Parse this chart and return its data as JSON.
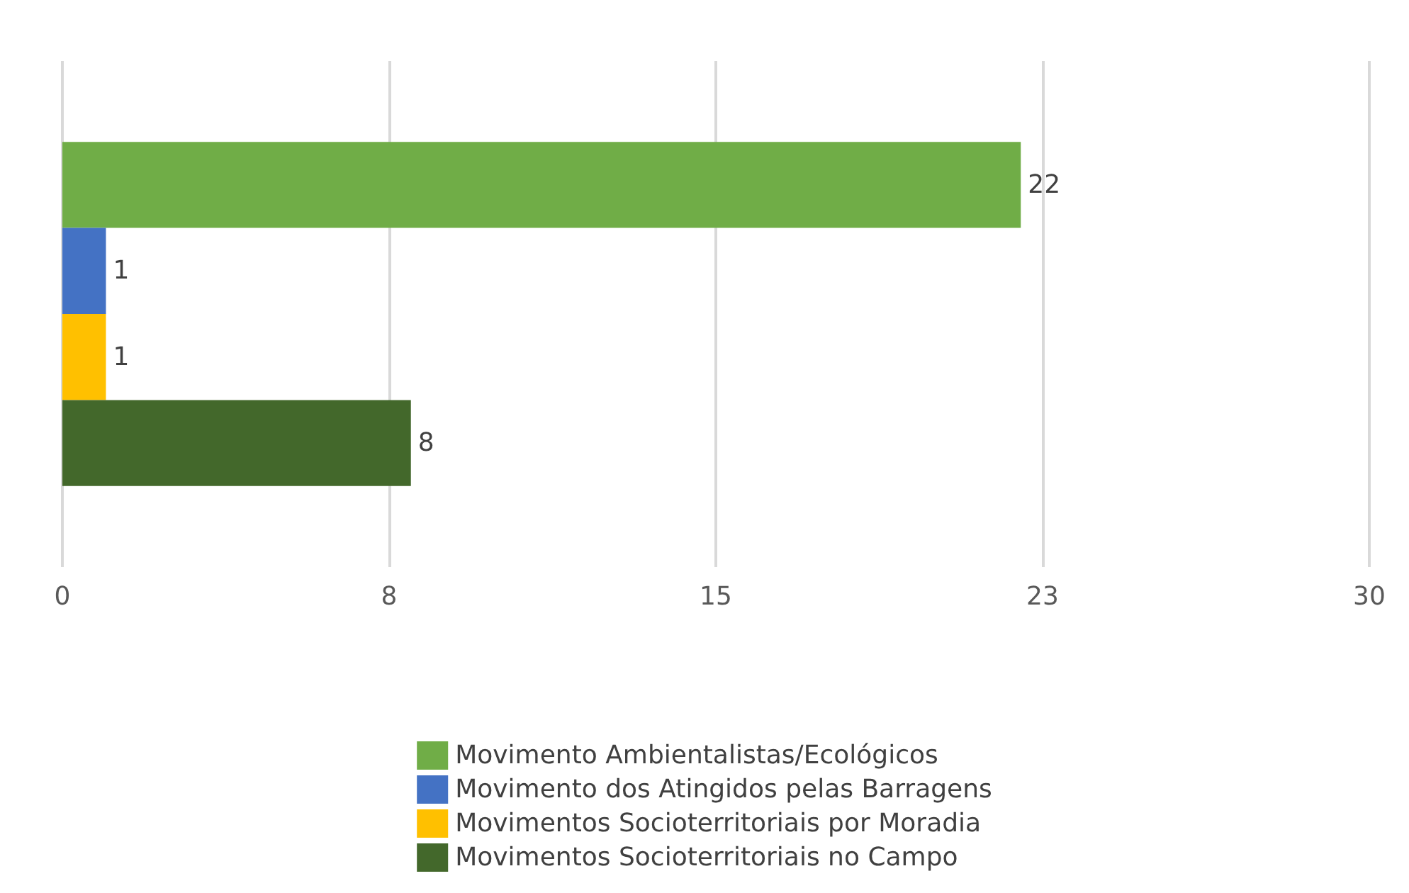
{
  "chart_data": {
    "type": "bar",
    "orientation": "horizontal",
    "categories": [
      null
    ],
    "series": [
      {
        "name": "Movimento Ambientalistas/Ecológicos",
        "color": "#70ad47",
        "values": [
          22
        ]
      },
      {
        "name": "Movimento dos Atingidos pelas Barragens",
        "color": "#4472c4",
        "values": [
          1
        ]
      },
      {
        "name": "Movimentos Socioterritoriais por Moradia",
        "color": "#ffc000",
        "values": [
          1
        ]
      },
      {
        "name": "Movimentos Socioterritoriais no Campo",
        "color": "#43682b",
        "values": [
          8
        ]
      }
    ],
    "xlim": [
      0,
      30
    ],
    "xticks": [
      0,
      {
        "value": 7.5,
        "label": "8"
      },
      15,
      {
        "value": 22.5,
        "label": "23"
      },
      30
    ],
    "grid": "x",
    "legend": "bottom",
    "data_labels": true
  }
}
